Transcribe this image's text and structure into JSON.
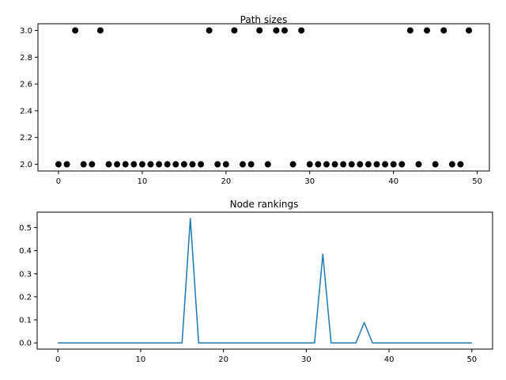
{
  "chart_data": [
    {
      "type": "scatter",
      "title": "Path sizes",
      "xlabel": "",
      "ylabel": "",
      "xlim": [
        -2.45,
        51.45
      ],
      "ylim": [
        1.95,
        3.05
      ],
      "xticks": [
        0,
        10,
        20,
        30,
        40,
        50
      ],
      "yticks": [
        2.0,
        2.2,
        2.4,
        2.6,
        2.8,
        3.0
      ],
      "ytick_labels": [
        "2.0",
        "2.2",
        "2.4",
        "2.6",
        "2.8",
        "3.0"
      ],
      "grid": false,
      "marker_color": "#000000",
      "x": [
        0,
        1,
        2,
        3,
        4,
        5,
        6,
        7,
        8,
        9,
        10,
        11,
        12,
        13,
        14,
        15,
        16,
        17,
        18,
        19,
        20,
        21,
        22,
        23,
        24,
        25,
        26,
        27,
        28,
        29,
        30,
        31,
        32,
        33,
        34,
        35,
        36,
        37,
        38,
        39,
        40,
        41,
        42,
        43,
        44,
        45,
        46,
        47,
        48,
        49
      ],
      "y": [
        2,
        2,
        3,
        2,
        2,
        3,
        2,
        2,
        2,
        2,
        2,
        2,
        2,
        2,
        2,
        2,
        2,
        2,
        3,
        2,
        2,
        3,
        2,
        2,
        3,
        2,
        3,
        3,
        2,
        3,
        2,
        2,
        2,
        2,
        2,
        2,
        2,
        2,
        2,
        2,
        2,
        2,
        3,
        2,
        3,
        2,
        3,
        2,
        2,
        3
      ]
    },
    {
      "type": "line",
      "title": "Node rankings",
      "xlabel": "",
      "ylabel": "",
      "xlim": [
        -2.5,
        52.5
      ],
      "ylim": [
        -0.027,
        0.567
      ],
      "xticks": [
        0,
        10,
        20,
        30,
        40,
        50
      ],
      "yticks": [
        0.0,
        0.1,
        0.2,
        0.3,
        0.4,
        0.5
      ],
      "ytick_labels": [
        "0.0",
        "0.1",
        "0.2",
        "0.3",
        "0.4",
        "0.5"
      ],
      "grid": false,
      "line_color": "#1f77b4",
      "x": [
        0,
        1,
        2,
        3,
        4,
        5,
        6,
        7,
        8,
        9,
        10,
        11,
        12,
        13,
        14,
        15,
        16,
        17,
        18,
        19,
        20,
        21,
        22,
        23,
        24,
        25,
        26,
        27,
        28,
        29,
        30,
        31,
        32,
        33,
        34,
        35,
        36,
        37,
        38,
        39,
        40,
        41,
        42,
        43,
        44,
        45,
        46,
        47,
        48,
        49,
        50
      ],
      "y": [
        0,
        0,
        0,
        0,
        0,
        0,
        0,
        0,
        0,
        0,
        0,
        0,
        0,
        0,
        0,
        0,
        0.54,
        0,
        0,
        0,
        0,
        0,
        0,
        0,
        0,
        0,
        0,
        0,
        0,
        0,
        0,
        0,
        0.385,
        0,
        0,
        0,
        0,
        0.088,
        0,
        0,
        0,
        0,
        0,
        0,
        0,
        0,
        0,
        0,
        0,
        0,
        0
      ]
    }
  ]
}
